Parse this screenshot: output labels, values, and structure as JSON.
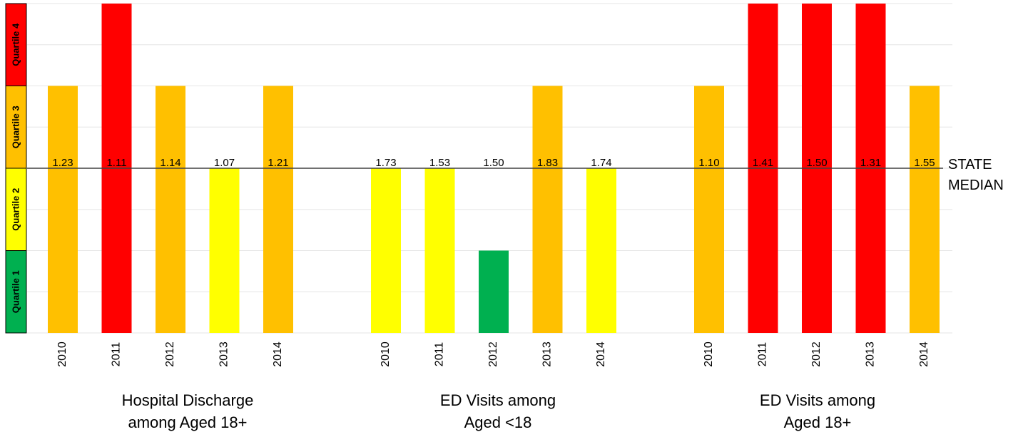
{
  "colors": {
    "quartile_1": "#00b050",
    "quartile_2": "#ffff00",
    "quartile_3": "#ffc000",
    "quartile_4": "#ff0000",
    "median_line": "#404040",
    "gridline": "#e6e6e6"
  },
  "chart_data": {
    "type": "bar",
    "y_axis": {
      "scale": "quartile",
      "ylim": [
        0,
        4
      ],
      "labels": [
        "Quartile 1",
        "Quartile 2",
        "Quartile 3",
        "Quartile 4"
      ],
      "grid": true
    },
    "median": {
      "label_line1": "STATE",
      "label_line2": "MEDIAN",
      "value": 2
    },
    "groups": [
      {
        "title_line1": "Hospital Discharge",
        "title_line2": "among Aged 18+",
        "categories": [
          "2010",
          "2011",
          "2012",
          "2013",
          "2014"
        ],
        "quartiles": [
          3,
          4,
          3,
          2,
          3
        ],
        "values": [
          "1.23",
          "1.11",
          "1.14",
          "1.07",
          "1.21"
        ]
      },
      {
        "title_line1": "ED Visits among",
        "title_line2": "Aged <18",
        "categories": [
          "2010",
          "2011",
          "2012",
          "2013",
          "2014"
        ],
        "quartiles": [
          2,
          2,
          1,
          3,
          2
        ],
        "values": [
          "1.73",
          "1.53",
          "1.50",
          "1.83",
          "1.74"
        ]
      },
      {
        "title_line1": "ED Visits among",
        "title_line2": "Aged 18+",
        "categories": [
          "2010",
          "2011",
          "2012",
          "2013",
          "2014"
        ],
        "quartiles": [
          3,
          4,
          4,
          4,
          3
        ],
        "values": [
          "1.10",
          "1.41",
          "1.50",
          "1.31",
          "1.55"
        ]
      }
    ]
  }
}
